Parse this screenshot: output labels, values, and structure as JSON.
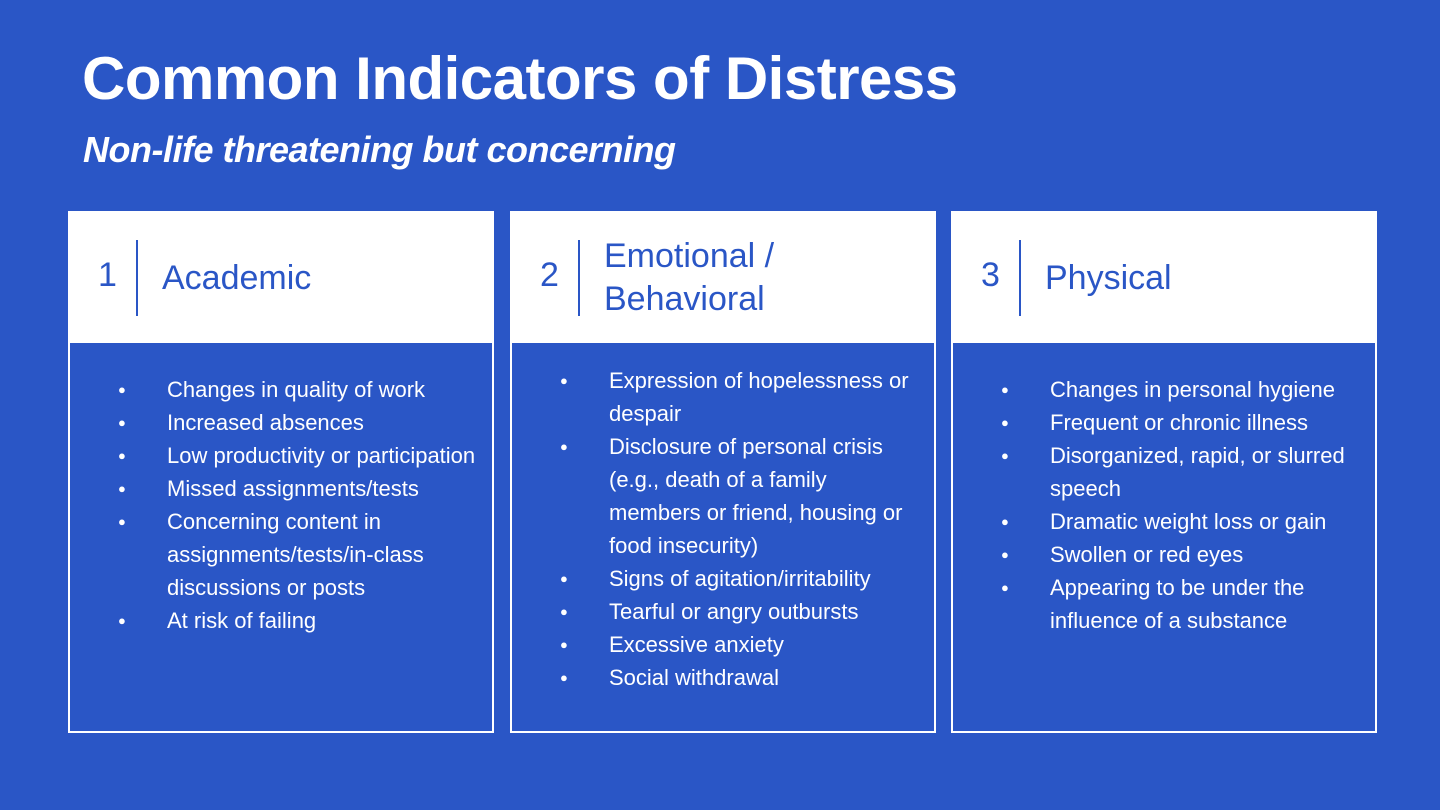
{
  "slide": {
    "title": "Common Indicators of Distress",
    "subtitle": "Non-life threatening but concerning",
    "background_color": "#2a56c6",
    "accent_color": "#ffffff"
  },
  "cards": [
    {
      "number": "1",
      "title": "Academic",
      "items": [
        "Changes in quality of work",
        "Increased absences",
        "Low productivity or participation",
        "Missed assignments/tests",
        "Concerning content in assignments/tests/in-class discussions or posts",
        "At risk of failing"
      ]
    },
    {
      "number": "2",
      "title": "Emotional / Behavioral",
      "items": [
        "Expression of hopelessness or despair",
        "Disclosure of personal crisis (e.g., death of a family members or friend, housing or food insecurity)",
        "Signs of agitation/irritability",
        "Tearful or angry outbursts",
        "Excessive anxiety",
        "Social withdrawal"
      ]
    },
    {
      "number": "3",
      "title": "Physical",
      "items": [
        "Changes in personal hygiene",
        "Frequent or chronic illness",
        "Disorganized, rapid, or slurred speech",
        "Dramatic weight  loss or gain",
        "Swollen or red eyes",
        "Appearing to be under the influence of a substance"
      ]
    }
  ]
}
